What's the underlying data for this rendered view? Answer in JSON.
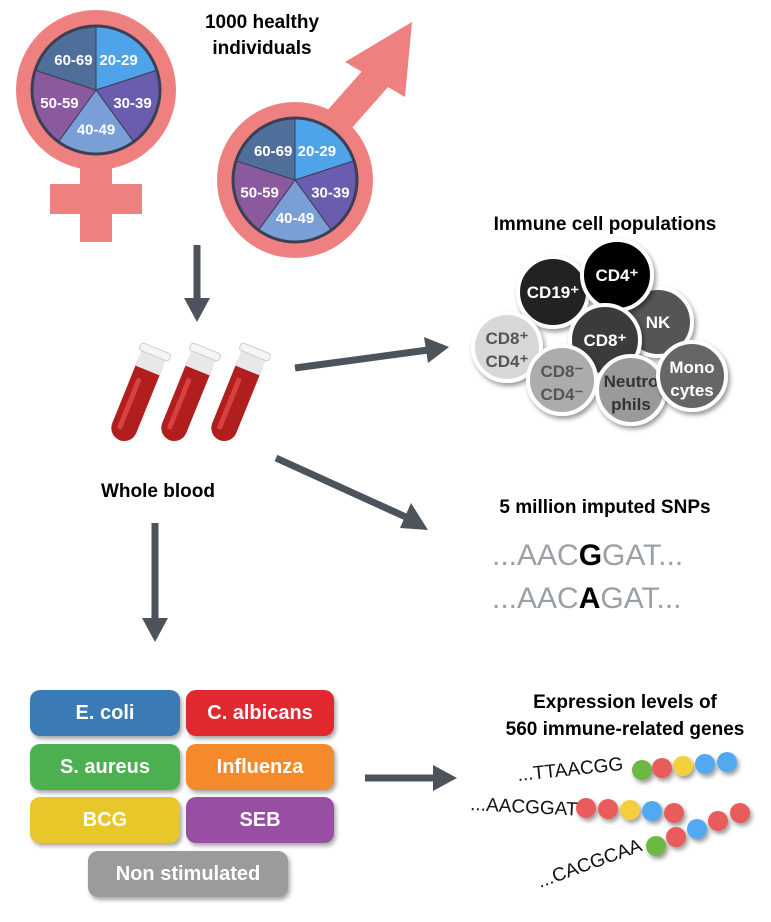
{
  "title_individuals": [
    "1000 healthy",
    "individuals"
  ],
  "age_groups": [
    {
      "label": "20-29",
      "color": "#4fa3e8"
    },
    {
      "label": "30-39",
      "color": "#6a5db0"
    },
    {
      "label": "40-49",
      "color": "#7a9fd6"
    },
    {
      "label": "50-59",
      "color": "#8b5a9e"
    },
    {
      "label": "60-69",
      "color": "#4f6e9a"
    }
  ],
  "symbol_color": "#ef8080",
  "whole_blood": "Whole blood",
  "immune_title": "Immune cell populations",
  "cells": [
    {
      "l1": "NK",
      "l2": ""
    },
    {
      "l1": "CD19⁺",
      "l2": ""
    },
    {
      "l1": "CD4⁺",
      "l2": ""
    },
    {
      "l1": "CD8⁺",
      "l2": "CD4⁺"
    },
    {
      "l1": "CD8⁺",
      "l2": ""
    },
    {
      "l1": "CD8⁻",
      "l2": "CD4⁻"
    },
    {
      "l1": "Neutro",
      "l2": "phils"
    },
    {
      "l1": "Mono",
      "l2": "cytes"
    }
  ],
  "snp_title": "5 million imputed SNPs",
  "snp_seqs": [
    {
      "pre": "...AAC",
      "snp": "G",
      "post": "GAT..."
    },
    {
      "pre": "...AAC",
      "snp": "A",
      "post": "GAT..."
    }
  ],
  "expr_title": [
    "Expression levels of",
    "560 immune-related genes"
  ],
  "expr_seqs": [
    "...TTAACGG",
    "...AACGGAT",
    "...CACGCAA"
  ],
  "stimuli": [
    {
      "label": "E. coli",
      "color": "#3a7ab5"
    },
    {
      "label": "C. albicans",
      "color": "#e0282e"
    },
    {
      "label": "S. aureus",
      "color": "#4caf50"
    },
    {
      "label": "Influenza",
      "color": "#f58a2a"
    },
    {
      "label": "BCG",
      "color": "#e8c72b"
    },
    {
      "label": "SEB",
      "color": "#984ea3"
    },
    {
      "label": "Non stimulated",
      "color": "#9b9b9b"
    }
  ]
}
